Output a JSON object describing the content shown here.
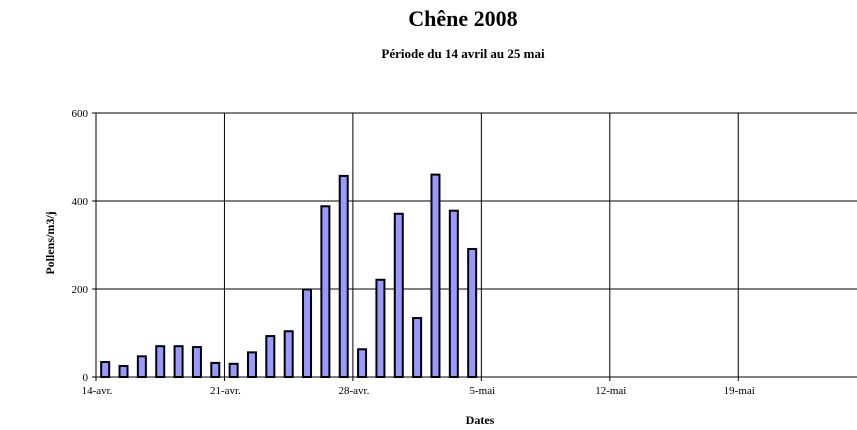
{
  "chart_data": {
    "type": "bar",
    "title": "Chêne 2008",
    "subtitle": "Période du 14 avril au 25 mai",
    "xlabel": "Dates",
    "ylabel": "Pollens/m3/j",
    "ylim": [
      0,
      600
    ],
    "y_ticks": [
      0,
      200,
      400,
      600
    ],
    "x_ticks": [
      "14-avr.",
      "21-avr.",
      "28-avr.",
      "5-mai",
      "12-mai",
      "19-mai"
    ],
    "grid": "vertical and horizontal",
    "colors": {
      "bar_fill": "#9999ff",
      "bar_stroke": "#000000",
      "grid": "#000000"
    },
    "values": [
      34,
      25,
      47,
      70,
      70,
      68,
      32,
      30,
      56,
      93,
      104,
      199,
      388,
      457,
      63,
      221,
      371,
      134,
      460,
      378,
      291
    ]
  }
}
